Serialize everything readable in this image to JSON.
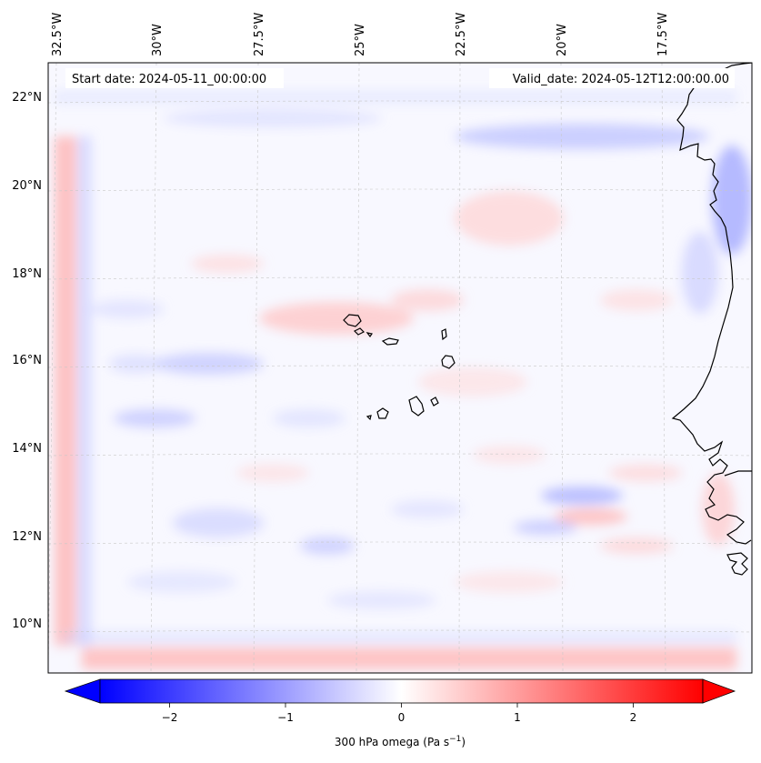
{
  "map": {
    "start_date_label": "Start date: 2024-05-11_00:00:00",
    "valid_date_label": "Valid_date: 2024-05-12T12:00:00.00",
    "longitude_labels": [
      "32.5°W",
      "30°W",
      "27.5°W",
      "25°W",
      "22.5°W",
      "20°W",
      "17.5°W"
    ],
    "latitude_labels": [
      "22°N",
      "20°N",
      "18°N",
      "16°N",
      "14°N",
      "12°N",
      "10°N"
    ],
    "field_colors": {
      "negative": "#0000ff",
      "zero": "#ffffff",
      "positive": "#ff0000"
    },
    "coastline_color": "#000000",
    "gridlines": true
  },
  "colorbar": {
    "ticks": [
      "−2",
      "−1",
      "0",
      "1",
      "2"
    ],
    "tick_values": [
      -2,
      -1,
      0,
      1,
      2
    ],
    "range": [
      -2.6,
      2.6
    ],
    "extend": "both",
    "label_main": "300 hPa omega (Pa s",
    "label_exp": "−1",
    "label_close": ")"
  }
}
